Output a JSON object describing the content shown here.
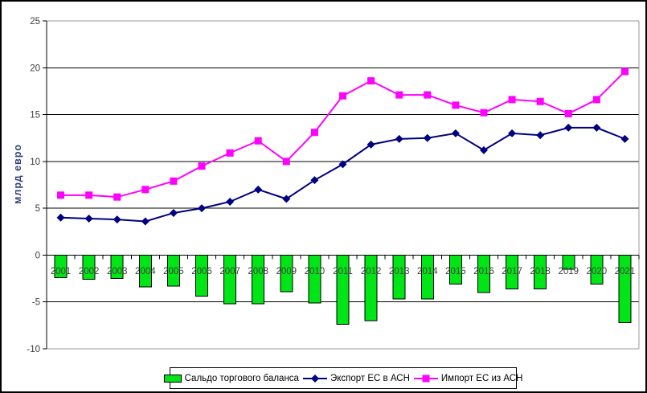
{
  "chart_data": {
    "type": "bar",
    "title": "",
    "xlabel": "",
    "ylabel": "млрд евро",
    "ylim": [
      -10,
      25
    ],
    "yticks": [
      25,
      20,
      15,
      10,
      5,
      0,
      -5,
      -10
    ],
    "grid": true,
    "legend_position": "bottom",
    "categories": [
      "2001",
      "2002",
      "2003",
      "2004",
      "2005",
      "2006",
      "2007",
      "2008",
      "2009",
      "2010",
      "2011",
      "2012",
      "2013",
      "2014",
      "2015",
      "2016",
      "2017",
      "2018",
      "2019",
      "2020",
      "2021"
    ],
    "series": [
      {
        "name": "Сальдо торгового баланса",
        "type": "bar",
        "color": "#00e515",
        "border_color": "#000000",
        "values": [
          -2.4,
          -2.6,
          -2.5,
          -3.4,
          -3.3,
          -4.4,
          -5.2,
          -5.2,
          -3.9,
          -5.1,
          -7.4,
          -7.0,
          -4.7,
          -4.7,
          -3.1,
          -4.0,
          -3.6,
          -3.6,
          -1.5,
          -3.1,
          -7.2
        ]
      },
      {
        "name": "Экспорт ЕС в АСН",
        "type": "line",
        "marker": "diamond",
        "color": "#000080",
        "values": [
          4.0,
          3.9,
          3.8,
          3.6,
          4.5,
          5.0,
          5.7,
          7.0,
          6.0,
          8.0,
          9.7,
          11.8,
          12.4,
          12.5,
          13.0,
          11.2,
          13.0,
          12.8,
          13.6,
          13.6,
          12.4
        ]
      },
      {
        "name": "Импорт ЕС из АСН",
        "type": "line",
        "marker": "square",
        "color": "#ff00ff",
        "values": [
          6.4,
          6.4,
          6.2,
          7.0,
          7.9,
          9.5,
          10.9,
          12.2,
          10.0,
          13.1,
          17.0,
          18.6,
          17.1,
          17.1,
          16.0,
          15.2,
          16.6,
          16.4,
          15.1,
          16.6,
          19.6
        ]
      }
    ]
  },
  "colors": {
    "background": "#ffffff",
    "outer_border": "#000000",
    "gridline": "#000000",
    "plot_frame": "#9a9a9a",
    "axis_line": "#000000",
    "tick_text": "#3c3c3c",
    "y_title_text": "#31427c"
  }
}
